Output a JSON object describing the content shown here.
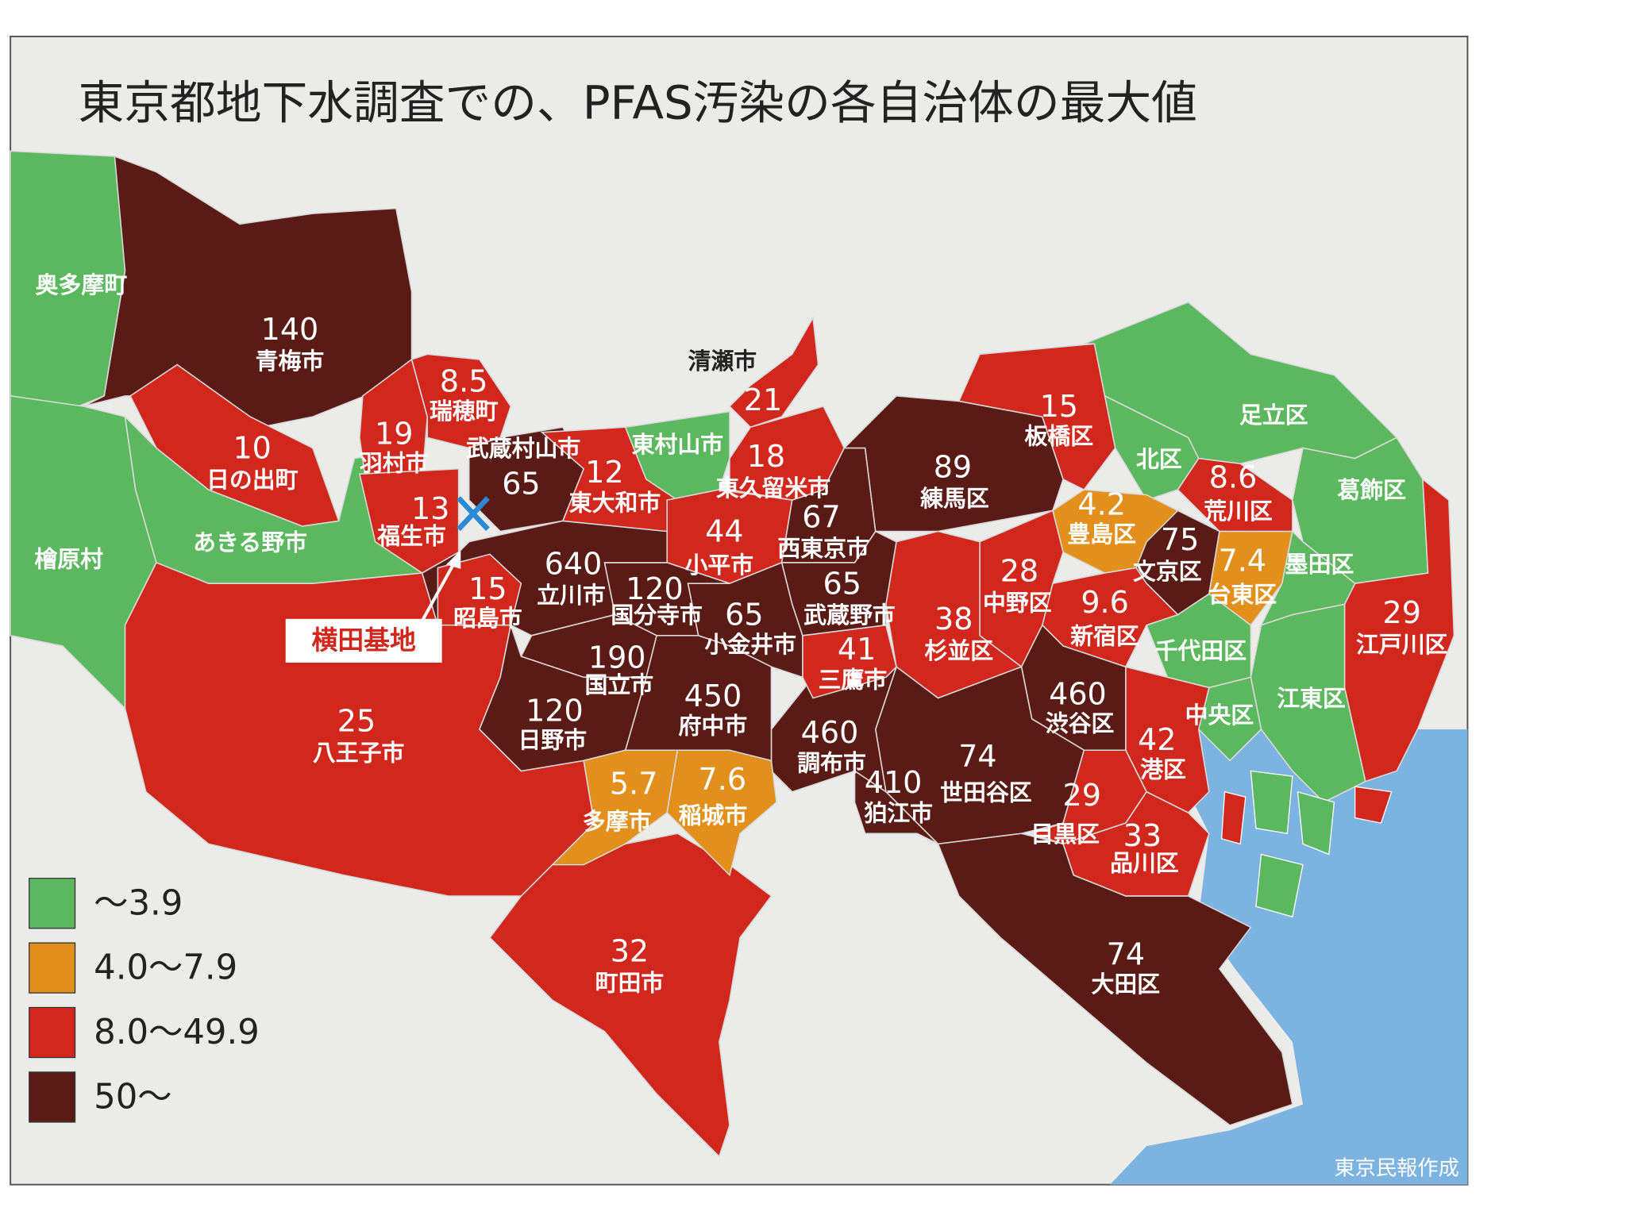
{
  "title": "東京都地下水調査での、PFAS汚染の各自治体の最大値",
  "regions": [
    {
      "name": "奥多摩町",
      "color": "#5cb85f"
    },
    {
      "name": "青梅市",
      "value": 140,
      "color": "#5a1b16"
    },
    {
      "name": "檜原村",
      "color": "#5cb85f"
    },
    {
      "name": "あきる野市",
      "color": "#5cb85f"
    },
    {
      "name": "日の出町",
      "value": 10,
      "color": "#d2271c"
    },
    {
      "name": "八王子市",
      "value": 25,
      "color": "#d2271c"
    },
    {
      "name": "町田市",
      "value": 32,
      "color": "#d2271c"
    },
    {
      "name": "羽村市",
      "value": 19,
      "color": "#d2271c"
    },
    {
      "name": "瑞穂町",
      "value": 8.5,
      "color": "#d2271c"
    },
    {
      "name": "福生市",
      "value": 13,
      "color": "#d2271c"
    },
    {
      "name": "武蔵村山市",
      "value": 65,
      "color": "#5a1b16"
    },
    {
      "name": "東大和市",
      "value": 12,
      "color": "#d2271c"
    },
    {
      "name": "東村山市",
      "color": "#5cb85f"
    },
    {
      "name": "清瀬市",
      "value": 21,
      "color": "#d2271c"
    },
    {
      "name": "東久留米市",
      "value": 18,
      "color": "#d2271c"
    },
    {
      "name": "小平市",
      "value": 44,
      "color": "#d2271c"
    },
    {
      "name": "西東京市",
      "value": 67,
      "color": "#5a1b16"
    },
    {
      "name": "練馬区",
      "value": 89,
      "color": "#5a1b16"
    },
    {
      "name": "板橋区",
      "value": 15,
      "color": "#d2271c"
    },
    {
      "name": "足立区",
      "color": "#5cb85f"
    },
    {
      "name": "北区",
      "color": "#5cb85f"
    },
    {
      "name": "荒川区",
      "value": 8.6,
      "color": "#d2271c"
    },
    {
      "name": "葛飾区",
      "color": "#5cb85f"
    },
    {
      "name": "江戸川区",
      "value": 29,
      "color": "#d2271c"
    },
    {
      "name": "豊島区",
      "value": 4.2,
      "color": "#e2901b"
    },
    {
      "name": "文京区",
      "value": 75,
      "color": "#5a1b16"
    },
    {
      "name": "台東区",
      "value": 7.4,
      "color": "#e2901b"
    },
    {
      "name": "墨田区",
      "color": "#5cb85f"
    },
    {
      "name": "江東区",
      "color": "#5cb85f"
    },
    {
      "name": "千代田区",
      "color": "#5cb85f"
    },
    {
      "name": "中央区",
      "color": "#5cb85f"
    },
    {
      "name": "港区",
      "value": 42,
      "color": "#d2271c"
    },
    {
      "name": "新宿区",
      "value": 9.6,
      "color": "#d2271c"
    },
    {
      "name": "中野区",
      "value": 28,
      "color": "#d2271c"
    },
    {
      "name": "杉並区",
      "value": 38,
      "color": "#d2271c"
    },
    {
      "name": "渋谷区",
      "value": 460,
      "color": "#5a1b16"
    },
    {
      "name": "世田谷区",
      "value": 74,
      "color": "#5a1b16"
    },
    {
      "name": "目黒区",
      "value": 29,
      "color": "#d2271c"
    },
    {
      "name": "品川区",
      "value": 33,
      "color": "#d2271c"
    },
    {
      "name": "大田区",
      "value": 74,
      "color": "#5a1b16"
    },
    {
      "name": "調布市",
      "value": 460,
      "color": "#5a1b16"
    },
    {
      "name": "狛江市",
      "value": 410,
      "color": "#5a1b16"
    },
    {
      "name": "三鷹市",
      "value": 41,
      "color": "#d2271c"
    },
    {
      "name": "武蔵野市",
      "value": 65,
      "color": "#5a1b16"
    },
    {
      "name": "小金井市",
      "value": 65,
      "color": "#5a1b16"
    },
    {
      "name": "国分寺市",
      "value": 120,
      "color": "#5a1b16"
    },
    {
      "name": "立川市",
      "value": 640,
      "color": "#5a1b16"
    },
    {
      "name": "昭島市",
      "value": 15,
      "color": "#d2271c"
    },
    {
      "name": "国立市",
      "value": 190,
      "color": "#5a1b16"
    },
    {
      "name": "府中市",
      "value": 450,
      "color": "#5a1b16"
    },
    {
      "name": "日野市",
      "value": 120,
      "color": "#5a1b16"
    },
    {
      "name": "多摩市",
      "value": 5.7,
      "color": "#e2901b"
    },
    {
      "name": "稲城市",
      "value": 7.6,
      "color": "#e2901b"
    }
  ],
  "base_label": "横田基地",
  "legend": [
    {
      "label": "～3.9",
      "color": "#5cb85f"
    },
    {
      "label": "4.0～7.9",
      "color": "#e2901b"
    },
    {
      "label": "8.0～49.9",
      "color": "#d2271c"
    },
    {
      "label": "50～",
      "color": "#5a1b16"
    }
  ],
  "credit": "東京民報作成"
}
